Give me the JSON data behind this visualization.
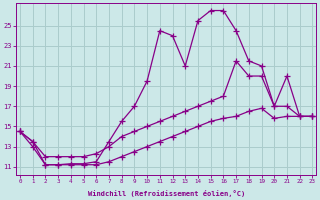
{
  "xlabel": "Windchill (Refroidissement éolien,°C)",
  "background_color": "#cce8e8",
  "grid_color": "#aacccc",
  "line_color": "#880088",
  "x_ticks": [
    0,
    1,
    2,
    3,
    4,
    5,
    6,
    7,
    8,
    9,
    10,
    11,
    12,
    13,
    14,
    15,
    16,
    17,
    18,
    19,
    20,
    21,
    22,
    23
  ],
  "y_ticks": [
    11,
    13,
    15,
    17,
    19,
    21,
    23,
    25
  ],
  "xlim": [
    -0.3,
    23.3
  ],
  "ylim": [
    10.2,
    27.2
  ],
  "series_main_x": [
    0,
    1,
    2,
    3,
    4,
    5,
    6,
    7,
    8,
    9,
    10,
    11,
    12,
    13,
    14,
    15,
    16,
    17,
    18,
    19,
    20,
    21,
    22,
    23
  ],
  "series_main_y": [
    14.5,
    13.5,
    11.2,
    11.2,
    11.3,
    11.3,
    11.5,
    13.5,
    15.5,
    17.0,
    19.5,
    24.5,
    24.0,
    21.0,
    25.5,
    26.5,
    26.5,
    24.5,
    21.5,
    21.0,
    17.0,
    17.0,
    16.0,
    16.0
  ],
  "series_mid_x": [
    0,
    1,
    2,
    3,
    4,
    5,
    6,
    7,
    8,
    9,
    10,
    11,
    12,
    13,
    14,
    15,
    16,
    17,
    18,
    19,
    20,
    21,
    22,
    23
  ],
  "series_mid_y": [
    14.5,
    13.5,
    12.0,
    12.0,
    12.0,
    12.0,
    12.3,
    13.0,
    14.0,
    14.5,
    15.0,
    15.5,
    16.0,
    16.5,
    17.0,
    17.5,
    18.0,
    21.5,
    20.0,
    20.0,
    17.0,
    20.0,
    16.0,
    16.0
  ],
  "series_low_x": [
    0,
    1,
    2,
    3,
    4,
    5,
    6,
    7,
    8,
    9,
    10,
    11,
    12,
    13,
    14,
    15,
    16,
    17,
    18,
    19,
    20,
    21,
    22,
    23
  ],
  "series_low_y": [
    14.5,
    13.0,
    11.2,
    11.2,
    11.2,
    11.2,
    11.2,
    11.5,
    12.0,
    12.5,
    13.0,
    13.5,
    14.0,
    14.5,
    15.0,
    15.5,
    15.8,
    16.0,
    16.5,
    16.8,
    15.8,
    16.0,
    16.0,
    16.0
  ]
}
